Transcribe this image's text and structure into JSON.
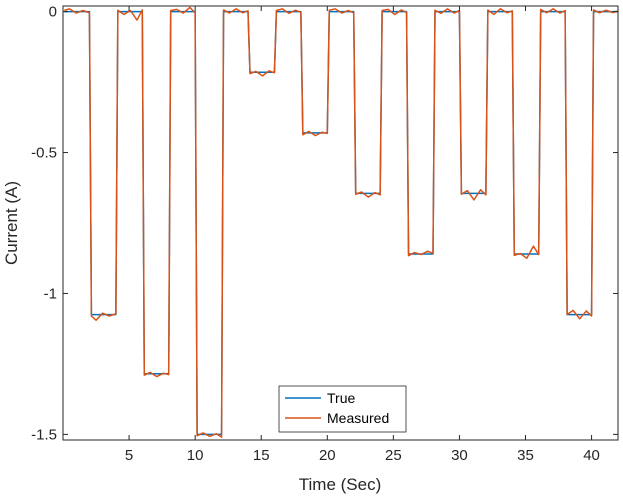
{
  "chart_data": {
    "type": "line",
    "title": "",
    "xlabel": "Time (Sec)",
    "ylabel": "Current (A)",
    "xlim": [
      0,
      42
    ],
    "ylim": [
      -1.52,
      0.02
    ],
    "xticks": [
      5,
      10,
      15,
      20,
      25,
      30,
      35,
      40
    ],
    "yticks": [
      0,
      -0.5,
      -1,
      -1.5
    ],
    "ytick_labels": [
      "0",
      "-0.5",
      "-1",
      "-1.5"
    ],
    "grid": false,
    "legend_position": "bottom-center",
    "colors": {
      "True": "#0072BD",
      "Measured": "#D95319",
      "axis": "#262626"
    },
    "pulses": [
      {
        "start": 2,
        "end": 4,
        "level": -1.075
      },
      {
        "start": 6,
        "end": 8,
        "level": -1.285
      },
      {
        "start": 10,
        "end": 12,
        "level": -1.5
      },
      {
        "start": 14,
        "end": 16,
        "level": -0.215
      },
      {
        "start": 18,
        "end": 20,
        "level": -0.43
      },
      {
        "start": 22,
        "end": 24,
        "level": -0.645
      },
      {
        "start": 26,
        "end": 28,
        "level": -0.86
      },
      {
        "start": 30,
        "end": 32,
        "level": -0.645
      },
      {
        "start": 34,
        "end": 36,
        "level": -0.86
      },
      {
        "start": 38,
        "end": 40,
        "level": -1.075
      }
    ],
    "series": [
      {
        "name": "True",
        "x": [
          0.1,
          2,
          2.15,
          4,
          4.15,
          6,
          6.15,
          8,
          8.15,
          10,
          10.15,
          12,
          12.15,
          14,
          14.15,
          16,
          16.15,
          18,
          18.15,
          20,
          20.15,
          22,
          22.15,
          24,
          24.15,
          26,
          26.15,
          28,
          28.15,
          30,
          30.15,
          32,
          32.15,
          34,
          34.15,
          36,
          36.15,
          38,
          38.15,
          40,
          40.15,
          42
        ],
        "y": [
          0,
          0,
          -1.075,
          -1.075,
          0,
          0,
          -1.285,
          -1.285,
          0,
          0,
          -1.5,
          -1.5,
          0,
          0,
          -0.215,
          -0.215,
          0,
          0,
          -0.43,
          -0.43,
          0,
          0,
          -0.645,
          -0.645,
          0,
          0,
          -0.86,
          -0.86,
          0,
          0,
          -0.645,
          -0.645,
          0,
          0,
          -0.86,
          -0.86,
          0,
          0,
          -1.075,
          -1.075,
          0,
          0
        ]
      },
      {
        "name": "Measured",
        "x": [
          0.1,
          0.5,
          1.0,
          1.5,
          2.0,
          2.15,
          2.5,
          3.0,
          3.5,
          4.0,
          4.15,
          4.6,
          5.1,
          5.6,
          6.0,
          6.15,
          6.6,
          7.1,
          7.6,
          8.0,
          8.15,
          8.6,
          9.1,
          9.6,
          10.0,
          10.15,
          10.6,
          11.1,
          11.6,
          12.0,
          12.15,
          12.6,
          13.1,
          13.6,
          14.0,
          14.15,
          14.6,
          15.1,
          15.6,
          16.0,
          16.15,
          16.6,
          17.1,
          17.6,
          18.0,
          18.15,
          18.6,
          19.1,
          19.6,
          20.0,
          20.15,
          20.6,
          21.1,
          21.6,
          22.0,
          22.15,
          22.6,
          23.1,
          23.6,
          24.0,
          24.15,
          24.6,
          25.1,
          25.6,
          26.0,
          26.15,
          26.6,
          27.1,
          27.6,
          28.0,
          28.15,
          28.6,
          29.1,
          29.6,
          30.0,
          30.15,
          30.6,
          31.1,
          31.6,
          32.0,
          32.15,
          32.6,
          33.1,
          33.6,
          34.0,
          34.15,
          34.6,
          35.1,
          35.6,
          36.0,
          36.15,
          36.6,
          37.1,
          37.6,
          38.0,
          38.15,
          38.6,
          39.1,
          39.6,
          40.0,
          40.15,
          40.6,
          41.1,
          41.6,
          42.0
        ],
        "y": [
          0.005,
          0.01,
          -0.005,
          0.004,
          -0.004,
          -1.08,
          -1.095,
          -1.07,
          -1.08,
          -1.072,
          0.005,
          -0.01,
          0.004,
          -0.03,
          0.006,
          -1.29,
          -1.28,
          -1.295,
          -1.283,
          -1.288,
          0.004,
          0.008,
          -0.005,
          0.015,
          -0.004,
          -1.505,
          -1.495,
          -1.507,
          -1.498,
          -1.51,
          0.006,
          -0.005,
          0.01,
          -0.004,
          0.003,
          -0.22,
          -0.212,
          -0.228,
          -0.21,
          -0.217,
          0.004,
          0.01,
          -0.006,
          0.005,
          -0.003,
          -0.437,
          -0.425,
          -0.44,
          -0.428,
          -0.432,
          0.005,
          0.01,
          -0.005,
          0.004,
          -0.004,
          -0.648,
          -0.64,
          -0.658,
          -0.642,
          -0.65,
          0.004,
          0.008,
          -0.01,
          0.006,
          -0.003,
          -0.866,
          -0.855,
          -0.862,
          -0.85,
          -0.858,
          0.005,
          -0.006,
          0.01,
          -0.005,
          0.004,
          -0.648,
          -0.635,
          -0.668,
          -0.632,
          -0.65,
          0.006,
          -0.01,
          0.01,
          -0.004,
          0.003,
          -0.865,
          -0.858,
          -0.875,
          -0.832,
          -0.862,
          0.008,
          -0.004,
          0.01,
          -0.005,
          0.004,
          -1.075,
          -1.06,
          -1.09,
          -1.062,
          -1.08,
          0.006,
          -0.004,
          0.005,
          -0.003,
          0.002
        ]
      }
    ]
  }
}
